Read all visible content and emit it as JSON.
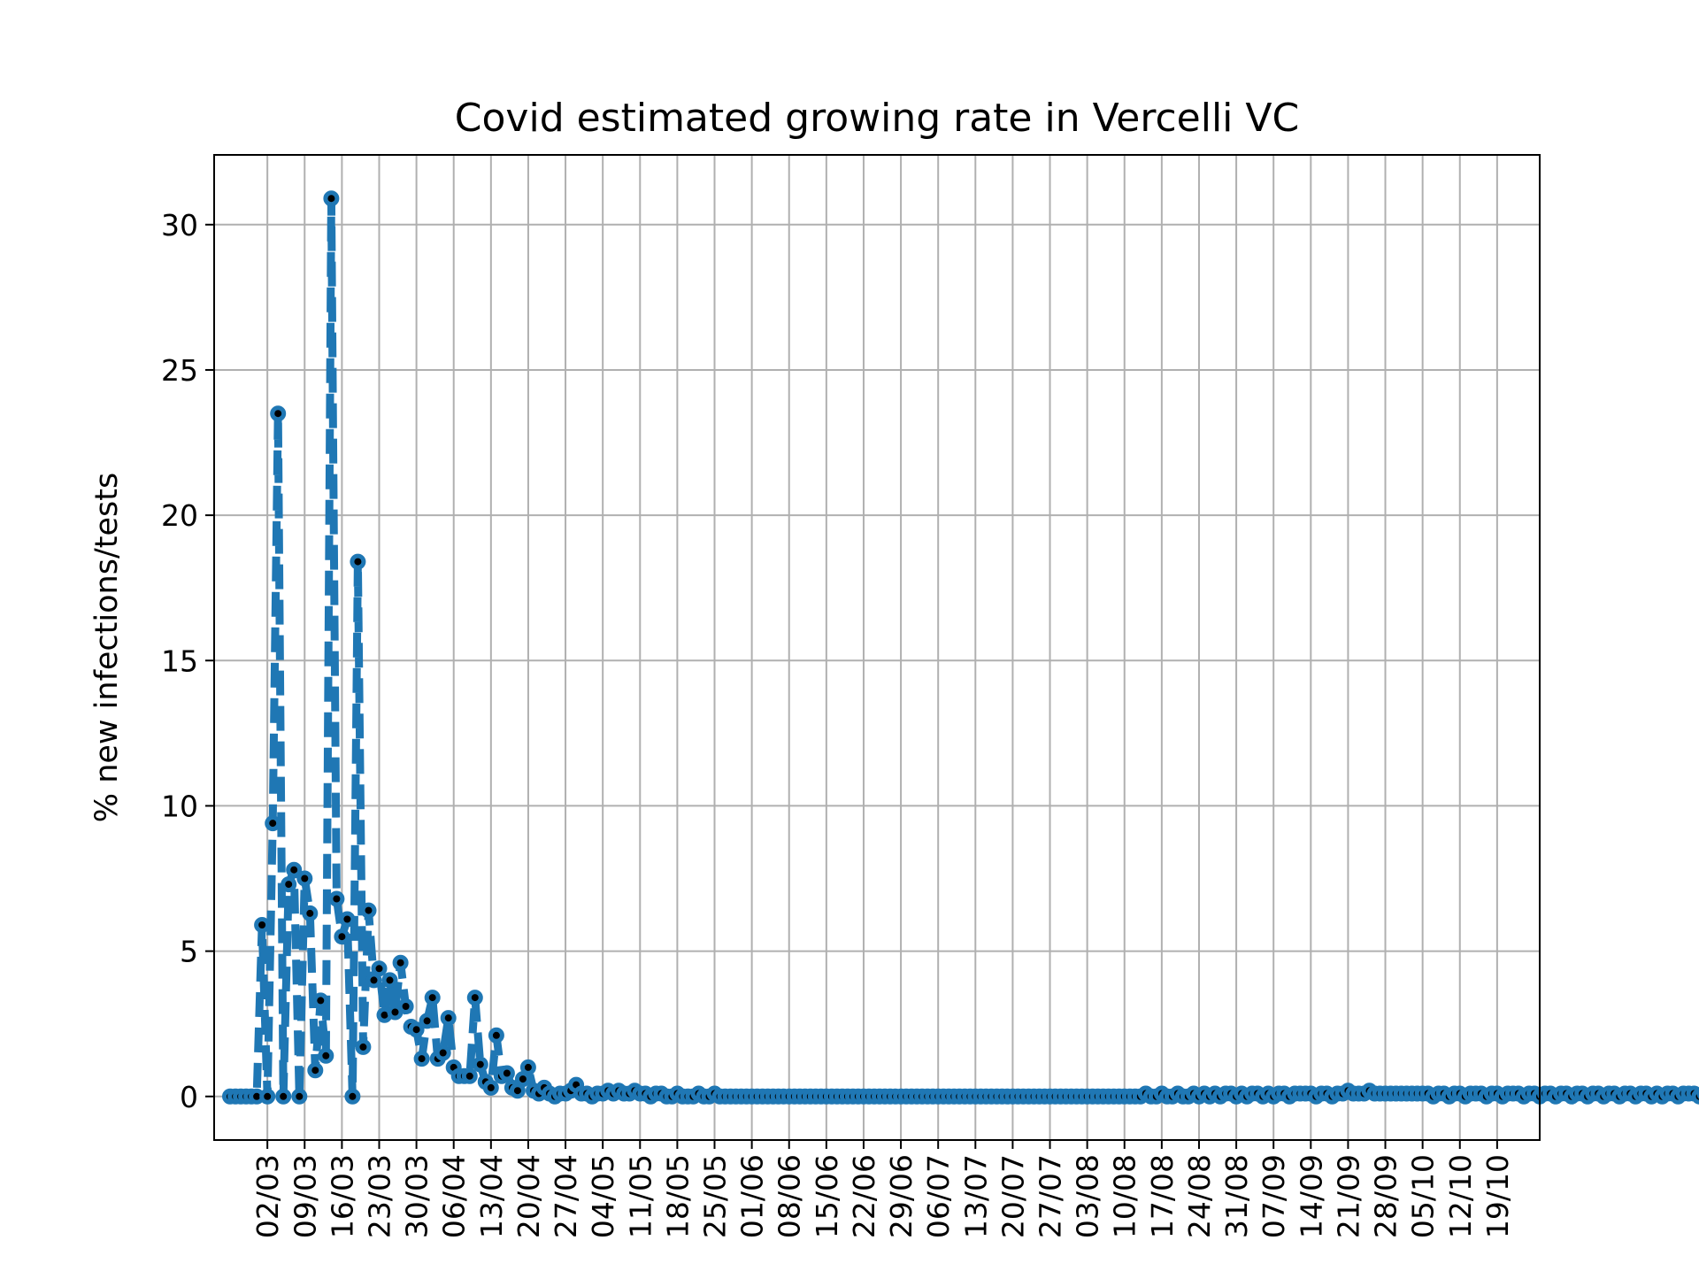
{
  "chart_data": {
    "type": "line",
    "title": "Covid estimated growing rate in Vercelli VC",
    "xlabel": "",
    "ylabel": "% new infections/tests",
    "ylim": [
      -1.5,
      32.4
    ],
    "yticks": [
      0,
      5,
      10,
      15,
      20,
      25,
      30
    ],
    "x_start": "2020-02-24",
    "xticks": [
      "02/03",
      "09/03",
      "16/03",
      "23/03",
      "30/03",
      "06/04",
      "13/04",
      "20/04",
      "27/04",
      "04/05",
      "11/05",
      "18/05",
      "25/05",
      "01/06",
      "08/06",
      "15/06",
      "22/06",
      "29/06",
      "06/07",
      "13/07",
      "20/07",
      "27/07",
      "03/08",
      "10/08",
      "17/08",
      "24/08",
      "31/08",
      "07/09",
      "14/09",
      "21/09",
      "28/09",
      "05/10",
      "12/10",
      "19/10"
    ],
    "grid": true,
    "series": [
      {
        "name": "",
        "color": "#1f77b4",
        "marker_color": "#000000",
        "line_style": "dashed",
        "values": [
          0,
          0,
          0,
          0,
          0,
          0,
          5.9,
          0,
          9.4,
          23.5,
          0,
          7.3,
          7.8,
          0,
          7.5,
          6.3,
          0.9,
          3.3,
          1.4,
          30.9,
          6.8,
          5.5,
          6.1,
          0,
          18.4,
          1.7,
          6.4,
          4.0,
          4.4,
          2.8,
          4.0,
          2.9,
          4.6,
          3.1,
          2.4,
          2.3,
          1.3,
          2.6,
          3.4,
          1.3,
          1.5,
          2.7,
          1.0,
          0.7,
          0.7,
          0.7,
          3.4,
          1.1,
          0.5,
          0.3,
          2.1,
          0.7,
          0.8,
          0.3,
          0.2,
          0.6,
          1.0,
          0.2,
          0.1,
          0.3,
          0.1,
          0.0,
          0.1,
          0.1,
          0.2,
          0.4,
          0.1,
          0.1,
          0.0,
          0.1,
          0.1,
          0.2,
          0.1,
          0.2,
          0.1,
          0.1,
          0.2,
          0.1,
          0.1,
          0.0,
          0.1,
          0.1,
          0.0,
          0.0,
          0.1,
          0.0,
          0.0,
          0.0,
          0.1,
          0.0,
          0.0,
          0.1,
          0.0,
          0.0,
          0.0,
          0.0,
          0.0,
          0.0,
          0.0,
          0.0,
          0.0,
          0.0,
          0.0,
          0.0,
          0.0,
          0.0,
          0.0,
          0.0,
          0.0,
          0.0,
          0.0,
          0.0,
          0.0,
          0.0,
          0.0,
          0.0,
          0.0,
          0.0,
          0.0,
          0.0,
          0.0,
          0.0,
          0.0,
          0.0,
          0.0,
          0.0,
          0.0,
          0.0,
          0.0,
          0.0,
          0.0,
          0.0,
          0.0,
          0.0,
          0.0,
          0.0,
          0.0,
          0.0,
          0.0,
          0.0,
          0.0,
          0.0,
          0.0,
          0.0,
          0.0,
          0.0,
          0.0,
          0.0,
          0.0,
          0.0,
          0.0,
          0.0,
          0.0,
          0.0,
          0.0,
          0.0,
          0.0,
          0.0,
          0.0,
          0.0,
          0.0,
          0.0,
          0.0,
          0.0,
          0.0,
          0.0,
          0.0,
          0.0,
          0.0,
          0.0,
          0.0,
          0.0,
          0.1,
          0.0,
          0.0,
          0.1,
          0.0,
          0.0,
          0.1,
          0.0,
          0.0,
          0.1,
          0.0,
          0.1,
          0.0,
          0.1,
          0.0,
          0.1,
          0.1,
          0.0,
          0.1,
          0.0,
          0.1,
          0.1,
          0.0,
          0.1,
          0.0,
          0.1,
          0.1,
          0.0,
          0.1,
          0.1,
          0.1,
          0.1,
          0.0,
          0.1,
          0.1,
          0.0,
          0.1,
          0.1,
          0.2,
          0.1,
          0.1,
          0.1,
          0.2,
          0.1,
          0.1,
          0.1,
          0.1,
          0.1,
          0.1,
          0.1,
          0.1,
          0.1,
          0.1,
          0.1,
          0.0,
          0.1,
          0.1,
          0.0,
          0.1,
          0.1,
          0.0,
          0.1,
          0.1,
          0.1,
          0.0,
          0.1,
          0.1,
          0.0,
          0.1,
          0.1,
          0.1,
          0.0,
          0.1,
          0.1,
          0.0,
          0.1,
          0.1,
          0.0,
          0.1,
          0.1,
          0.0,
          0.1,
          0.1,
          0.0,
          0.1,
          0.1,
          0.0,
          0.1,
          0.1,
          0.0,
          0.1,
          0.1,
          0.0,
          0.1,
          0.1,
          0.0,
          0.1,
          0.0,
          0.1,
          0.1,
          0.0,
          0.1,
          0.1,
          0.1,
          0.0,
          0.1
        ]
      }
    ]
  }
}
